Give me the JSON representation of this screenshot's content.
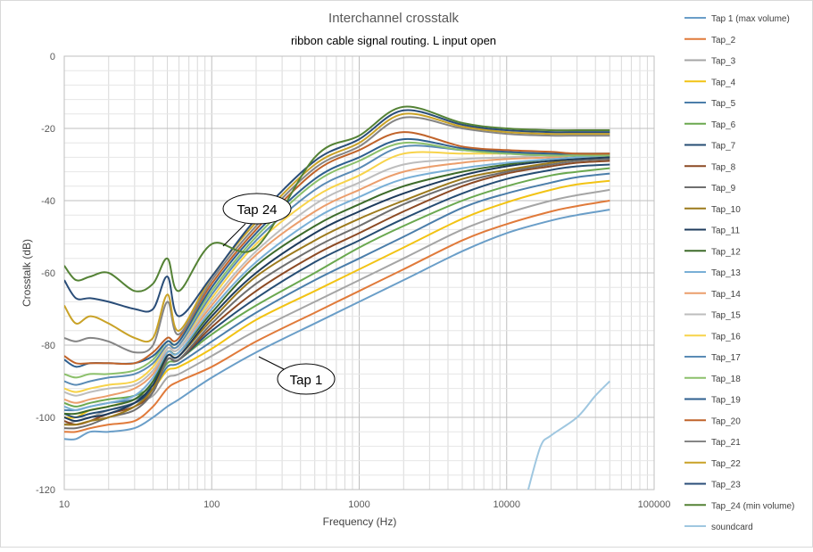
{
  "chart_data": {
    "type": "line",
    "title": "Interchannel crosstalk",
    "subtitle": "ribbon cable signal routing. L input open",
    "xlabel": "Frequency (Hz)",
    "ylabel": "Crosstalk (dB)",
    "x_scale": "log",
    "xlim": [
      10,
      100000
    ],
    "ylim": [
      -120,
      0
    ],
    "x_ticks": [
      10,
      100,
      1000,
      10000,
      100000
    ],
    "x_tick_labels": [
      "10",
      "100",
      "1000",
      "10000",
      "100000"
    ],
    "y_ticks": [
      0,
      -20,
      -40,
      -60,
      -80,
      -100,
      -120
    ],
    "y_tick_labels": [
      "0",
      "-20",
      "-40",
      "-60",
      "-80",
      "-100",
      "-120"
    ],
    "grid": true,
    "legend_position": "right",
    "annotations": [
      {
        "text": "Tap 24",
        "x": 100,
        "y": -52
      },
      {
        "text": "Tap 1",
        "x": 1500,
        "y": -83
      }
    ],
    "series": [
      {
        "name": "Tap 1 (max volume)",
        "color": "#6a9ec8",
        "x": [
          10,
          12,
          15,
          20,
          30,
          40,
          50,
          60,
          100,
          200,
          500,
          1000,
          2000,
          5000,
          10000,
          20000,
          30000,
          50000
        ],
        "y": [
          -106,
          -106,
          -104,
          -104,
          -103,
          -100,
          -97,
          -95,
          -89,
          -82,
          -74,
          -68,
          -62,
          -54,
          -49,
          -45.5,
          -44,
          -42.5
        ]
      },
      {
        "name": "Tap_2",
        "color": "#e07a3a",
        "x": [
          10,
          12,
          15,
          20,
          30,
          40,
          50,
          60,
          100,
          200,
          500,
          1000,
          2000,
          5000,
          10000,
          20000,
          30000,
          50000
        ],
        "y": [
          -104,
          -104,
          -103,
          -102,
          -101,
          -97,
          -92,
          -90,
          -86,
          -79,
          -71,
          -65,
          -59,
          -51,
          -46.5,
          -43,
          -41.5,
          -40
        ]
      },
      {
        "name": "Tap_3",
        "color": "#a5a5a5",
        "x": [
          10,
          12,
          15,
          20,
          30,
          40,
          50,
          60,
          100,
          200,
          500,
          1000,
          2000,
          5000,
          10000,
          20000,
          30000,
          50000
        ],
        "y": [
          -102,
          -101,
          -100,
          -98,
          -96,
          -94,
          -89,
          -88,
          -83,
          -76,
          -68,
          -62,
          -56,
          -48,
          -43.5,
          -40,
          -38.5,
          -37
        ]
      },
      {
        "name": "Tap_4",
        "color": "#f2c314",
        "x": [
          10,
          12,
          15,
          20,
          30,
          40,
          50,
          60,
          100,
          200,
          500,
          1000,
          2000,
          5000,
          10000,
          20000,
          30000,
          50000
        ],
        "y": [
          -100,
          -100,
          -98,
          -97,
          -95,
          -92,
          -87,
          -86,
          -81,
          -73,
          -65,
          -59,
          -53,
          -45,
          -40.5,
          -37,
          -35.5,
          -34.5
        ]
      },
      {
        "name": "Tap_5",
        "color": "#4b7eaa",
        "x": [
          10,
          12,
          15,
          20,
          30,
          40,
          50,
          60,
          100,
          200,
          500,
          1000,
          2000,
          5000,
          10000,
          20000,
          30000,
          50000
        ],
        "y": [
          -98,
          -98,
          -97,
          -96,
          -95,
          -92,
          -86,
          -85,
          -79,
          -71,
          -62,
          -56,
          -50,
          -42,
          -38,
          -35,
          -33.5,
          -32.5
        ]
      },
      {
        "name": "Tap_6",
        "color": "#6aa84f",
        "x": [
          10,
          12,
          15,
          20,
          30,
          40,
          50,
          60,
          100,
          200,
          500,
          1000,
          2000,
          5000,
          10000,
          20000,
          30000,
          50000
        ],
        "y": [
          -96,
          -97,
          -96,
          -95,
          -94,
          -91,
          -85,
          -84,
          -77,
          -69,
          -60,
          -53,
          -47,
          -40,
          -36,
          -33,
          -32,
          -31
        ]
      },
      {
        "name": "Tap_7",
        "color": "#264d73",
        "x": [
          10,
          12,
          15,
          20,
          30,
          40,
          50,
          60,
          100,
          200,
          500,
          1000,
          2000,
          5000,
          10000,
          20000,
          30000,
          50000
        ],
        "y": [
          -99,
          -100,
          -99,
          -98,
          -96,
          -92,
          -84,
          -84,
          -76,
          -67,
          -57,
          -51,
          -45,
          -38,
          -34,
          -31.5,
          -30.5,
          -30
        ]
      },
      {
        "name": "Tap_8",
        "color": "#8c4a24",
        "x": [
          10,
          12,
          15,
          20,
          30,
          40,
          50,
          60,
          100,
          200,
          500,
          1000,
          2000,
          5000,
          10000,
          20000,
          30000,
          50000
        ],
        "y": [
          -101,
          -102,
          -101,
          -99,
          -97,
          -93,
          -84,
          -84,
          -75,
          -65,
          -55,
          -49,
          -43,
          -36,
          -32.5,
          -30.5,
          -29.5,
          -29
        ]
      },
      {
        "name": "Tap_9",
        "color": "#6f6f6f",
        "x": [
          10,
          12,
          15,
          20,
          30,
          40,
          50,
          60,
          100,
          200,
          500,
          1000,
          2000,
          5000,
          10000,
          20000,
          30000,
          50000
        ],
        "y": [
          -103,
          -103,
          -102,
          -100,
          -98,
          -93,
          -84,
          -84,
          -74,
          -63,
          -53,
          -47,
          -41,
          -35,
          -32,
          -30,
          -29,
          -28.5
        ]
      },
      {
        "name": "Tap_10",
        "color": "#9c7a1c",
        "x": [
          10,
          12,
          15,
          20,
          30,
          40,
          50,
          60,
          100,
          200,
          500,
          1000,
          2000,
          5000,
          10000,
          20000,
          30000,
          50000
        ],
        "y": [
          -102,
          -102,
          -101,
          -100,
          -97,
          -92,
          -83,
          -83,
          -73,
          -61,
          -51,
          -45,
          -40,
          -34,
          -31.5,
          -29.5,
          -28.5,
          -28
        ]
      },
      {
        "name": "Tap_11",
        "color": "#1e3b5c",
        "x": [
          10,
          12,
          15,
          20,
          30,
          40,
          50,
          60,
          100,
          200,
          500,
          1000,
          2000,
          5000,
          10000,
          20000,
          30000,
          50000
        ],
        "y": [
          -100,
          -101,
          -100,
          -99,
          -96,
          -91,
          -83,
          -83,
          -72,
          -60,
          -49,
          -43,
          -38,
          -33,
          -30.5,
          -29,
          -28.5,
          -28
        ]
      },
      {
        "name": "Tap_12",
        "color": "#3d6b2a",
        "x": [
          10,
          12,
          15,
          20,
          30,
          40,
          50,
          60,
          100,
          200,
          500,
          1000,
          2000,
          5000,
          10000,
          20000,
          30000,
          50000
        ],
        "y": [
          -99,
          -99,
          -98,
          -97,
          -95,
          -90,
          -82,
          -82,
          -71,
          -58,
          -47,
          -41,
          -36,
          -32,
          -30,
          -28.5,
          -28,
          -27.5
        ]
      },
      {
        "name": "Tap_13",
        "color": "#79afd6",
        "x": [
          10,
          12,
          15,
          20,
          30,
          40,
          50,
          60,
          100,
          200,
          500,
          1000,
          2000,
          5000,
          10000,
          20000,
          30000,
          50000
        ],
        "y": [
          -97,
          -98,
          -97,
          -96,
          -94,
          -89,
          -82,
          -82,
          -70,
          -57,
          -45,
          -39,
          -34,
          -31,
          -29.5,
          -28.5,
          -28,
          -27.5
        ]
      },
      {
        "name": "Tap_14",
        "color": "#eb9e6c",
        "x": [
          10,
          12,
          15,
          20,
          30,
          40,
          50,
          60,
          100,
          200,
          500,
          1000,
          2000,
          5000,
          10000,
          20000,
          30000,
          50000
        ],
        "y": [
          -95,
          -96,
          -95,
          -94,
          -92,
          -88,
          -81,
          -81,
          -69,
          -55,
          -43,
          -37,
          -32,
          -29.5,
          -28.5,
          -28,
          -27.5,
          -27.5
        ]
      },
      {
        "name": "Tap_15",
        "color": "#bdbdbd",
        "x": [
          10,
          12,
          15,
          20,
          30,
          40,
          50,
          60,
          100,
          200,
          500,
          1000,
          2000,
          5000,
          10000,
          20000,
          30000,
          50000
        ],
        "y": [
          -93,
          -94,
          -93,
          -92,
          -91,
          -87,
          -81,
          -81,
          -68,
          -54,
          -41,
          -35,
          -30,
          -28.5,
          -28,
          -27.5,
          -27.5,
          -27.5
        ]
      },
      {
        "name": "Tap_16",
        "color": "#f7d34a",
        "x": [
          10,
          12,
          15,
          20,
          30,
          40,
          50,
          60,
          100,
          200,
          500,
          1000,
          2000,
          5000,
          10000,
          20000,
          30000,
          50000
        ],
        "y": [
          -92,
          -93,
          -92,
          -91,
          -90,
          -86,
          -80,
          -80,
          -67,
          -52,
          -39,
          -33,
          -27,
          -27,
          -27,
          -27,
          -27,
          -27
        ]
      },
      {
        "name": "Tap_17",
        "color": "#5a8bb5",
        "x": [
          10,
          12,
          15,
          20,
          30,
          40,
          50,
          60,
          100,
          200,
          500,
          1000,
          2000,
          5000,
          10000,
          20000,
          30000,
          50000
        ],
        "y": [
          -90,
          -91,
          -90,
          -89,
          -88,
          -85,
          -80,
          -80,
          -66,
          -51,
          -37,
          -31,
          -25,
          -26,
          -27,
          -27.5,
          -27.5,
          -27.5
        ]
      },
      {
        "name": "Tap_18",
        "color": "#8cc06b",
        "x": [
          10,
          12,
          15,
          20,
          30,
          40,
          50,
          60,
          100,
          200,
          500,
          1000,
          2000,
          5000,
          10000,
          20000,
          30000,
          50000
        ],
        "y": [
          -88,
          -89,
          -88,
          -88,
          -87,
          -84,
          -79,
          -79,
          -65,
          -50,
          -35,
          -29,
          -24,
          -26,
          -27,
          -27.5,
          -27.5,
          -27.5
        ]
      },
      {
        "name": "Tap_19",
        "color": "#2e5f8f",
        "x": [
          10,
          12,
          15,
          20,
          30,
          40,
          50,
          60,
          100,
          200,
          500,
          1000,
          2000,
          5000,
          10000,
          20000,
          30000,
          50000
        ],
        "y": [
          -84,
          -86,
          -85,
          -85,
          -85,
          -83,
          -79,
          -79,
          -64,
          -49,
          -34,
          -28,
          -23,
          -25.5,
          -26.5,
          -27,
          -27,
          -27
        ]
      },
      {
        "name": "Tap_20",
        "color": "#c0632a",
        "x": [
          10,
          12,
          15,
          20,
          30,
          40,
          50,
          60,
          100,
          200,
          500,
          1000,
          2000,
          5000,
          10000,
          20000,
          30000,
          50000
        ],
        "y": [
          -83,
          -85,
          -85,
          -85,
          -85,
          -82,
          -78,
          -78,
          -63,
          -48,
          -32,
          -26,
          -21,
          -25,
          -26,
          -26.5,
          -27,
          -27
        ]
      },
      {
        "name": "Tap_21",
        "color": "#858585",
        "x": [
          10,
          12,
          15,
          20,
          30,
          40,
          50,
          60,
          100,
          200,
          500,
          1000,
          2000,
          5000,
          10000,
          20000,
          30000,
          50000
        ],
        "y": [
          -78,
          -79,
          -78,
          -79,
          -82,
          -80,
          -68,
          -77,
          -62,
          -47,
          -31,
          -25,
          -17,
          -20,
          -21.5,
          -22,
          -22,
          -22
        ]
      },
      {
        "name": "Tap_22",
        "color": "#c9a227",
        "x": [
          10,
          12,
          15,
          20,
          30,
          40,
          50,
          60,
          100,
          200,
          500,
          1000,
          2000,
          5000,
          10000,
          20000,
          30000,
          50000
        ],
        "y": [
          -69,
          -74,
          -72,
          -74,
          -78,
          -78,
          -66,
          -76,
          -61,
          -46,
          -30,
          -24,
          -16,
          -19.5,
          -21,
          -21.5,
          -21.5,
          -21.5
        ]
      },
      {
        "name": "Tap_23",
        "color": "#2a4d78",
        "x": [
          10,
          12,
          15,
          20,
          30,
          40,
          50,
          60,
          100,
          200,
          500,
          1000,
          2000,
          5000,
          10000,
          20000,
          30000,
          50000
        ],
        "y": [
          -62,
          -67,
          -67,
          -68,
          -70,
          -70,
          -61,
          -72,
          -61,
          -45,
          -29,
          -23,
          -15,
          -19,
          -20.5,
          -21,
          -21,
          -21
        ]
      },
      {
        "name": "Tap_24 (min volume)",
        "color": "#548235",
        "x": [
          10,
          12,
          15,
          20,
          30,
          40,
          50,
          60,
          100,
          200,
          500,
          1000,
          2000,
          5000,
          10000,
          20000,
          30000,
          50000
        ],
        "y": [
          -58,
          -62,
          -61,
          -60,
          -65,
          -63,
          -56,
          -65,
          -52,
          -53,
          -28,
          -22,
          -14,
          -18.5,
          -20,
          -20.5,
          -20.5,
          -20.5
        ]
      },
      {
        "name": "soundcard",
        "color": "#9fc7e0",
        "x": [
          14000,
          17000,
          20000,
          30000,
          40000,
          50000
        ],
        "y": [
          -120,
          -108,
          -105,
          -100,
          -94,
          -90
        ]
      }
    ]
  }
}
